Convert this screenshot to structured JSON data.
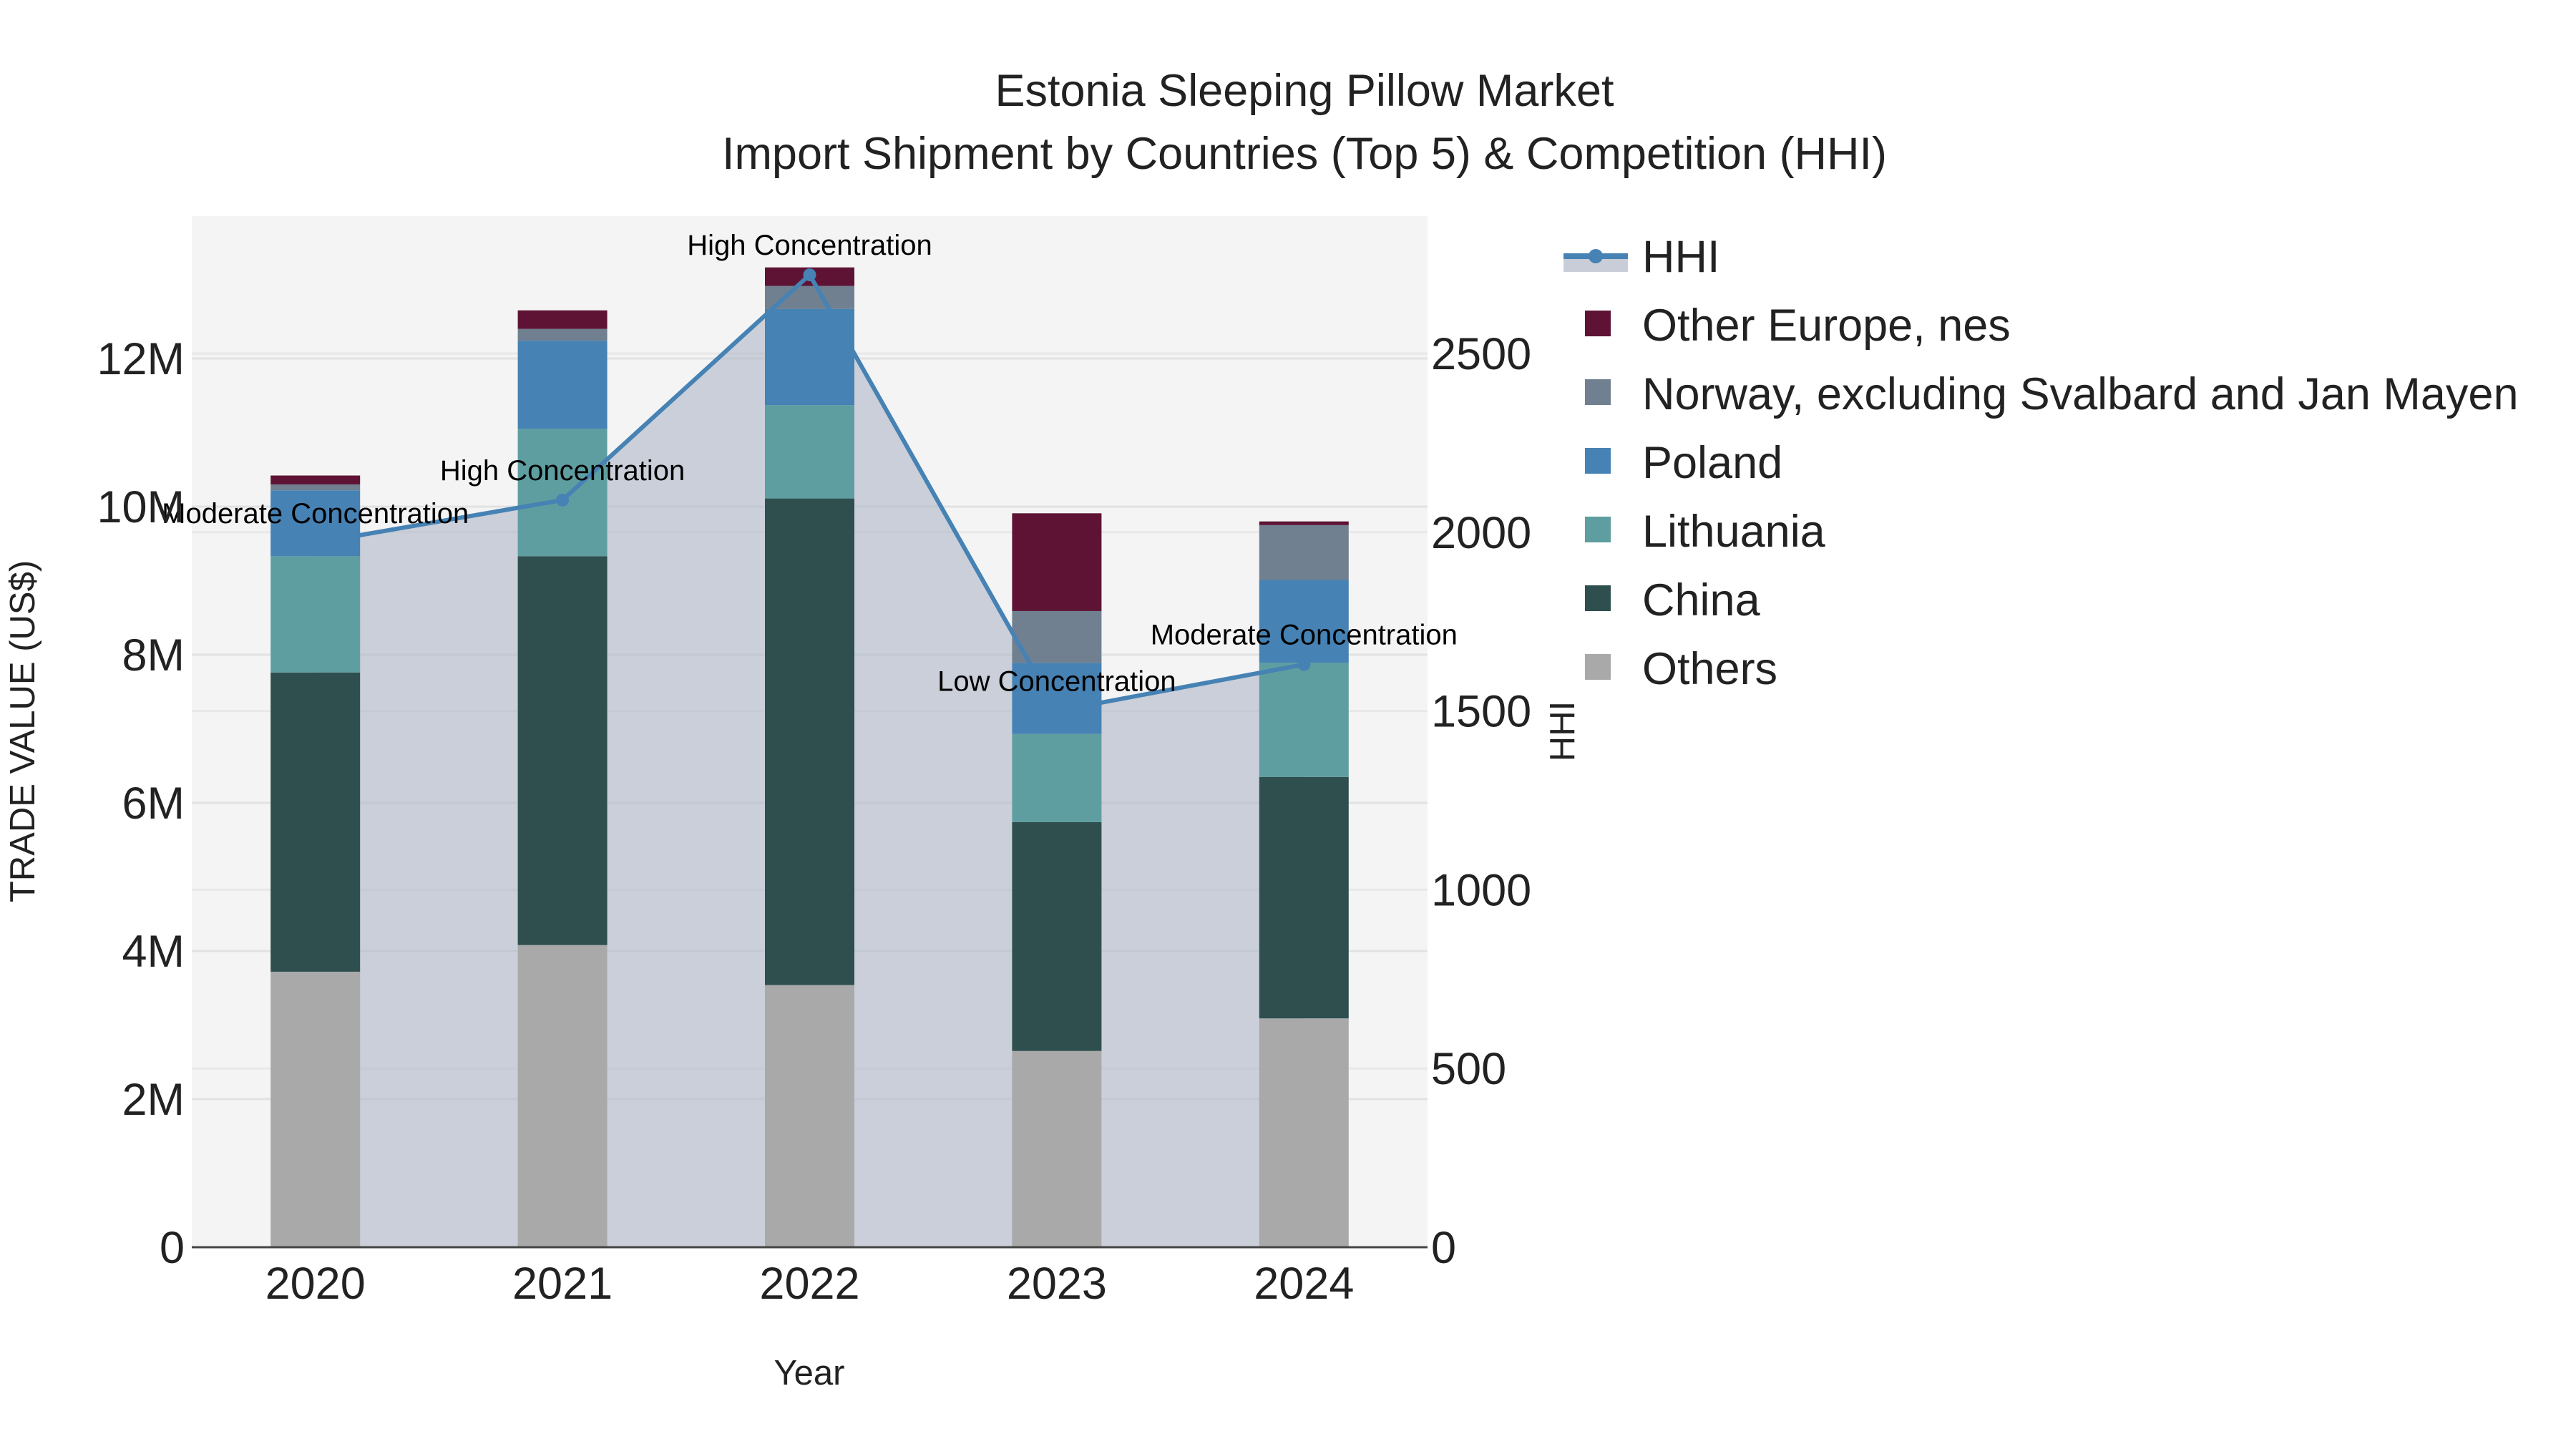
{
  "chart_data": {
    "type": "bar",
    "stacked": true,
    "title": "Estonia Sleeping Pillow Market",
    "subtitle": "Import Shipment by Countries (Top 5) & Competition (HHI)",
    "xlabel": "Year",
    "ylabel": "TRADE VALUE (US$)",
    "y2label": "HHI",
    "categories": [
      "2020",
      "2021",
      "2022",
      "2023",
      "2024"
    ],
    "ylim": [
      0,
      13900000
    ],
    "y2lim": [
      0,
      2830
    ],
    "yticks": [
      {
        "value": 0,
        "label": "0"
      },
      {
        "value": 2000000,
        "label": "2M"
      },
      {
        "value": 4000000,
        "label": "4M"
      },
      {
        "value": 6000000,
        "label": "6M"
      },
      {
        "value": 8000000,
        "label": "8M"
      },
      {
        "value": 10000000,
        "label": "10M"
      },
      {
        "value": 12000000,
        "label": "12M"
      }
    ],
    "y2ticks": [
      {
        "value": 0,
        "label": "0"
      },
      {
        "value": 500,
        "label": "500"
      },
      {
        "value": 1000,
        "label": "1000"
      },
      {
        "value": 1500,
        "label": "1500"
      },
      {
        "value": 2000,
        "label": "2000"
      },
      {
        "value": 2500,
        "label": "2500"
      }
    ],
    "series": [
      {
        "name": "Others",
        "color": "#a9a9a9",
        "values": [
          3720000,
          4080000,
          3540000,
          2650000,
          3090000
        ]
      },
      {
        "name": "China",
        "color": "#2f4f4f",
        "values": [
          4040000,
          5250000,
          6570000,
          3090000,
          3260000
        ]
      },
      {
        "name": "Lithuania",
        "color": "#5f9ea0",
        "values": [
          1570000,
          1720000,
          1260000,
          1190000,
          1540000
        ]
      },
      {
        "name": "Poland",
        "color": "#4682b4",
        "values": [
          890000,
          1190000,
          1300000,
          960000,
          1120000
        ]
      },
      {
        "name": "Norway, excluding Svalbard and Jan Mayen",
        "color": "#708090",
        "values": [
          80000,
          160000,
          310000,
          700000,
          740000
        ]
      },
      {
        "name": "Other Europe, nes",
        "color": "#5e1334",
        "values": [
          120000,
          250000,
          250000,
          1320000,
          50000
        ]
      }
    ],
    "hhi": {
      "name": "HHI",
      "color": "#4682b4",
      "fill": "rgba(176,184,200,0.6)",
      "values": [
        1970,
        2090,
        2720,
        1500,
        1630
      ],
      "annotations": [
        "Moderate Concentration",
        "High Concentration",
        "High Concentration",
        "Low Concentration",
        "Moderate Concentration"
      ]
    },
    "legend": {
      "position": "right",
      "items": [
        "HHI",
        "Other Europe, nes",
        "Norway, excluding Svalbard and Jan Mayen",
        "Poland",
        "Lithuania",
        "China",
        "Others"
      ]
    },
    "grid": true,
    "plot_bgcolor": "#f4f4f4"
  }
}
